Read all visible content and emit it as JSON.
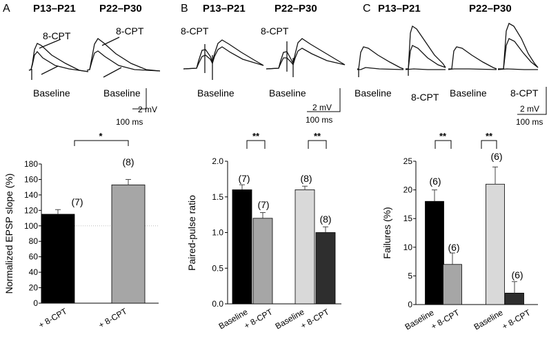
{
  "figure": {
    "panels": [
      {
        "letter": "A",
        "ages": [
          "P13–P21",
          "P22–P30"
        ]
      },
      {
        "letter": "B",
        "ages": [
          "P13–P21",
          "P22–P30"
        ]
      },
      {
        "letter": "C",
        "ages": [
          "P13–P21",
          "P22–P30"
        ]
      }
    ],
    "traces": {
      "drug_label": "8-CPT",
      "baseline_label": "Baseline",
      "scale_mv": "2 mV",
      "scale_ms": "100 ms"
    }
  },
  "colors": {
    "black_bar": "#000000",
    "gray_bar": "#a6a6a6",
    "light_bar": "#d9d9d9",
    "dark_bar": "#2e2e2e",
    "dotted_line": "#bbbbbb"
  },
  "chart_data": [
    {
      "type": "bar",
      "panel": "A",
      "categories": [
        "+ 8-CPT",
        "+ 8-CPT"
      ],
      "values": [
        115,
        153
      ],
      "errors": [
        6,
        7
      ],
      "n": [
        "(7)",
        "(8)"
      ],
      "colors": [
        "#000000",
        "#a6a6a6"
      ],
      "ylabel": "Normalized EPSP slope (%)",
      "ylim": [
        0,
        180
      ],
      "yticks": [
        0,
        20,
        40,
        60,
        80,
        100,
        120,
        140,
        160,
        180
      ],
      "reference_line": 100,
      "significance": [
        {
          "between": [
            0,
            1
          ],
          "label": "*"
        }
      ]
    },
    {
      "type": "bar",
      "panel": "B",
      "categories": [
        "Baseline",
        "+ 8-CPT",
        "Baseline",
        "+ 8-CPT"
      ],
      "values": [
        1.6,
        1.2,
        1.6,
        1.0
      ],
      "errors": [
        0.07,
        0.08,
        0.05,
        0.08
      ],
      "n": [
        "(7)",
        "(7)",
        "(8)",
        "(8)"
      ],
      "colors": [
        "#000000",
        "#a6a6a6",
        "#d9d9d9",
        "#2e2e2e"
      ],
      "ylabel": "Paired-pulse ratio",
      "ylim": [
        0,
        2.0
      ],
      "yticks": [
        "0.0",
        "0.5",
        "1.0",
        "1.5",
        "2.0"
      ],
      "significance": [
        {
          "between": [
            0,
            1
          ],
          "label": "**"
        },
        {
          "between": [
            2,
            3
          ],
          "label": "**"
        }
      ]
    },
    {
      "type": "bar",
      "panel": "C",
      "categories": [
        "Baseline",
        "+ 8-CPT",
        "Baseline",
        "+ 8-CPT"
      ],
      "values": [
        18,
        7,
        21,
        2
      ],
      "errors": [
        2,
        2,
        3,
        2
      ],
      "n": [
        "(6)",
        "(6)",
        "(6)",
        "(6)"
      ],
      "colors": [
        "#000000",
        "#a6a6a6",
        "#d9d9d9",
        "#2e2e2e"
      ],
      "ylabel": "Failures (%)",
      "ylim": [
        0,
        25
      ],
      "yticks": [
        0,
        5,
        10,
        15,
        20,
        25
      ],
      "significance": [
        {
          "between": [
            0,
            1
          ],
          "label": "**"
        },
        {
          "between": [
            2,
            3
          ],
          "label": "**"
        }
      ]
    }
  ]
}
